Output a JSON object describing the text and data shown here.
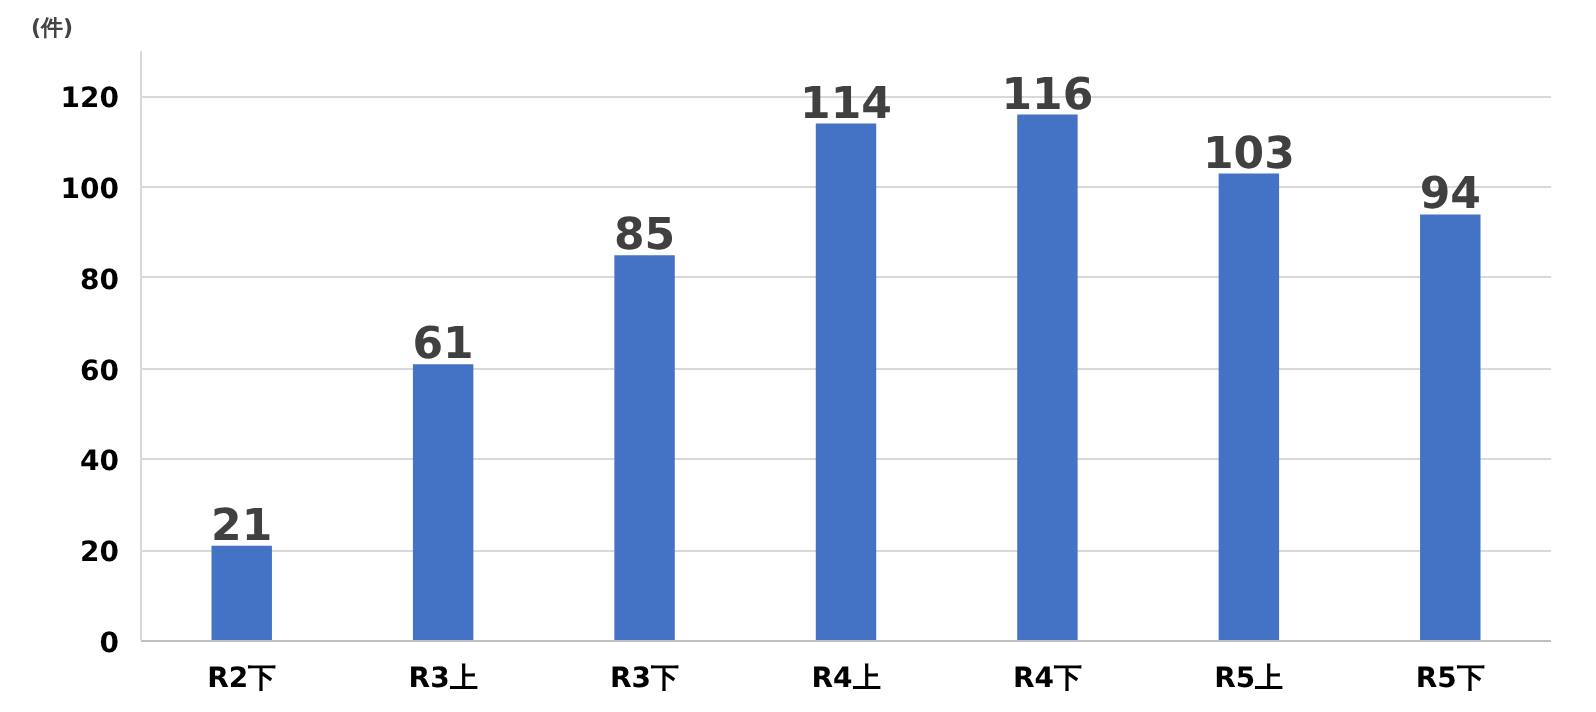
{
  "chart_data": {
    "type": "bar",
    "ylabel": "(件)",
    "categories": [
      "R2下",
      "R3上",
      "R3下",
      "R4上",
      "R4下",
      "R5上",
      "R5下"
    ],
    "values": [
      21,
      61,
      85,
      114,
      116,
      103,
      94
    ],
    "color": "#4472c4",
    "ylim": [
      0,
      130
    ],
    "yticks": [
      0,
      20,
      40,
      60,
      80,
      100,
      120
    ],
    "grid": "y",
    "data_labels": true
  }
}
